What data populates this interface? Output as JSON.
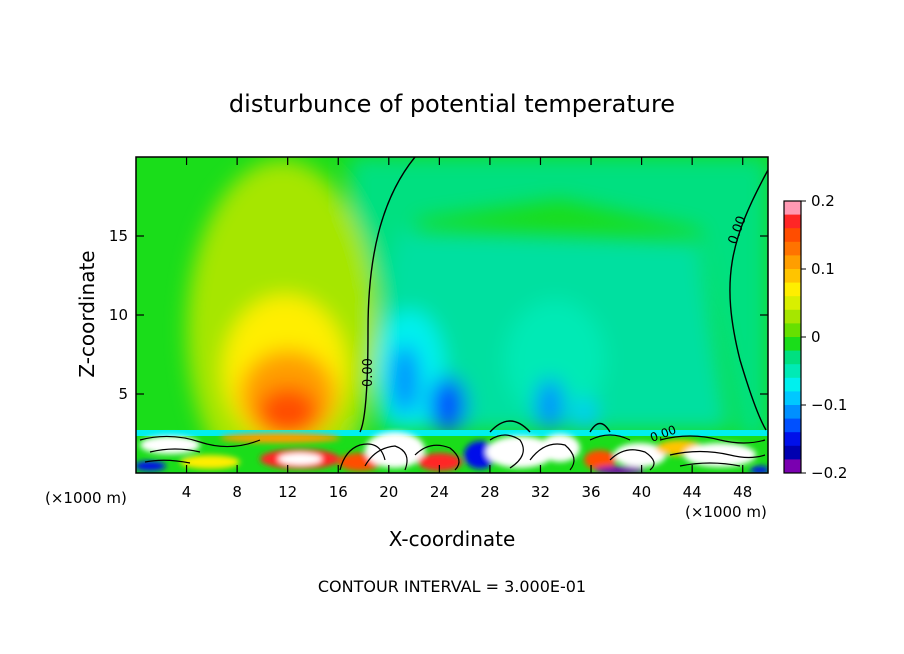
{
  "chart_data": {
    "type": "heatmap",
    "title": "disturbunce of potential temperature",
    "xlabel": "X-coordinate",
    "ylabel": "Z-coordinate",
    "x_unit": "(×1000 m)",
    "y_unit": "(×1000 m)",
    "xlim": [
      0,
      50
    ],
    "ylim": [
      0,
      20
    ],
    "xticks": [
      "4",
      "8",
      "12",
      "16",
      "20",
      "24",
      "28",
      "32",
      "36",
      "40",
      "44",
      "48"
    ],
    "xtick_values": [
      4,
      8,
      12,
      16,
      20,
      24,
      28,
      32,
      36,
      40,
      44,
      48
    ],
    "yticks": [
      "5",
      "10",
      "15"
    ],
    "ytick_values": [
      5,
      10,
      15
    ],
    "colorbar": {
      "min": -0.2,
      "max": 0.2,
      "tick_labels": [
        "0.2",
        "0.1",
        "0",
        "−0.1",
        "−0.2"
      ],
      "tick_values": [
        0.2,
        0.1,
        0,
        -0.1,
        -0.2
      ],
      "colors": [
        "#ff99b3",
        "#ff2626",
        "#ff4d00",
        "#ff7300",
        "#ff9e00",
        "#ffc400",
        "#ffee00",
        "#d9ef00",
        "#a6e600",
        "#66e000",
        "#1add1a",
        "#00e080",
        "#00eab5",
        "#00f0ee",
        "#00c8ff",
        "#0090ff",
        "#0050ff",
        "#0010ea",
        "#0000b0",
        "#7a00b0"
      ]
    },
    "contour_labels": [
      "0.00",
      "0.00",
      "0.00"
    ],
    "annotation": "CONTOUR INTERVAL = 3.000E-01"
  },
  "colors": {
    "background_field": "#00e080",
    "warm_outer": "#a6e600",
    "warm_mid": "#ffc400",
    "warm_core": "#ff4d00",
    "cool_outer": "#00eab5",
    "cool_core": "#0050ff"
  }
}
